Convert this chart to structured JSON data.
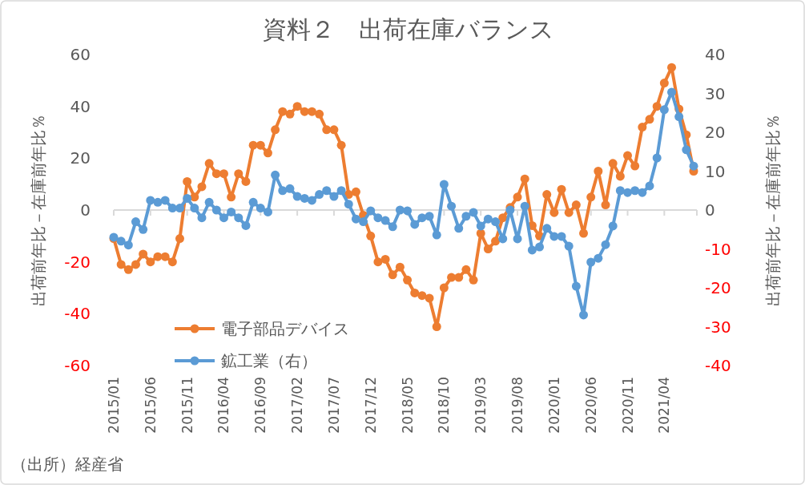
{
  "chart_data": {
    "type": "line",
    "title": "資料２　出荷在庫バランス",
    "ylabel": "出荷前年比－在庫前年比％",
    "y2label": "出荷前年比－在庫前年比％",
    "annotations": [
      "（出所）経産省"
    ],
    "categories": [
      "2015/01",
      null,
      null,
      null,
      null,
      "2015/06",
      null,
      null,
      null,
      null,
      "2015/11",
      null,
      null,
      null,
      null,
      "2016/04",
      null,
      null,
      null,
      null,
      "2016/09",
      null,
      null,
      null,
      null,
      "2017/02",
      null,
      null,
      null,
      null,
      "2017/07",
      null,
      null,
      null,
      null,
      "2017/12",
      null,
      null,
      null,
      null,
      "2018/05",
      null,
      null,
      null,
      null,
      "2018/10",
      null,
      null,
      null,
      null,
      "2019/03",
      null,
      null,
      null,
      null,
      "2019/08",
      null,
      null,
      null,
      null,
      "2020/01",
      null,
      null,
      null,
      null,
      "2020/06",
      null,
      null,
      null,
      null,
      "2020/11",
      null,
      null,
      null,
      null,
      "2021/04",
      null,
      null,
      null,
      null
    ],
    "series": [
      {
        "name": "電子部品デバイス",
        "color": "#ed7d31",
        "values": [
          -11,
          -21,
          -23,
          -21,
          -17,
          -20,
          -18,
          -18,
          -20,
          -11,
          11,
          5,
          9,
          18,
          14,
          14,
          5,
          14,
          11,
          25,
          25,
          22,
          31,
          38,
          37,
          40,
          38,
          38,
          37,
          31,
          31,
          25,
          6,
          7,
          -2,
          -10,
          -20,
          -19,
          -25,
          -22,
          -27,
          -32,
          -33,
          -34,
          -45,
          -30,
          -26,
          -26,
          -23,
          -27,
          -9,
          -15,
          -12,
          -3,
          1,
          5,
          12,
          -6,
          -10,
          6,
          -1,
          8,
          -1,
          2,
          -9,
          5,
          15,
          2,
          18,
          13,
          21,
          17,
          32,
          35,
          40,
          49,
          55,
          39,
          29,
          15
        ]
      },
      {
        "name": "鉱工業（右）",
        "color": "#5b9bd5",
        "axis": "y2",
        "values": [
          -7,
          -8,
          -9,
          -3,
          -5,
          2.5,
          2,
          2.5,
          0.5,
          0.5,
          3,
          0.5,
          -2,
          2,
          0,
          -2,
          -0.5,
          -2,
          -4,
          2,
          0.5,
          -0.5,
          9,
          5,
          5.5,
          3.5,
          3,
          2.5,
          4,
          5,
          3.5,
          5,
          1.5,
          -2.3,
          -3,
          -0.2,
          -2,
          -2.7,
          -4.3,
          0,
          -0.2,
          -3.7,
          -2,
          -1.6,
          -6.4,
          6.6,
          1,
          -4.7,
          -1.6,
          -0.6,
          -4.1,
          -2.3,
          -3,
          -7.4,
          0,
          -7.4,
          1,
          -10.3,
          -9.5,
          -4.7,
          -6.8,
          -6.8,
          -9.3,
          -19.6,
          -27,
          -13.4,
          -12.4,
          -8.9,
          -4.1,
          5,
          4.5,
          5,
          4.5,
          6.2,
          13.4,
          25.8,
          30.3,
          24,
          15.5,
          11.3
        ]
      }
    ],
    "ylim": [
      -60,
      60
    ],
    "yticks": [
      -60,
      -40,
      -20,
      0,
      20,
      40,
      60
    ],
    "y2lim": [
      -40,
      40
    ],
    "y2ticks": [
      -40,
      -30,
      -20,
      -10,
      0,
      10,
      20,
      30,
      40
    ],
    "marker": "circle",
    "legend": "bottom left"
  }
}
